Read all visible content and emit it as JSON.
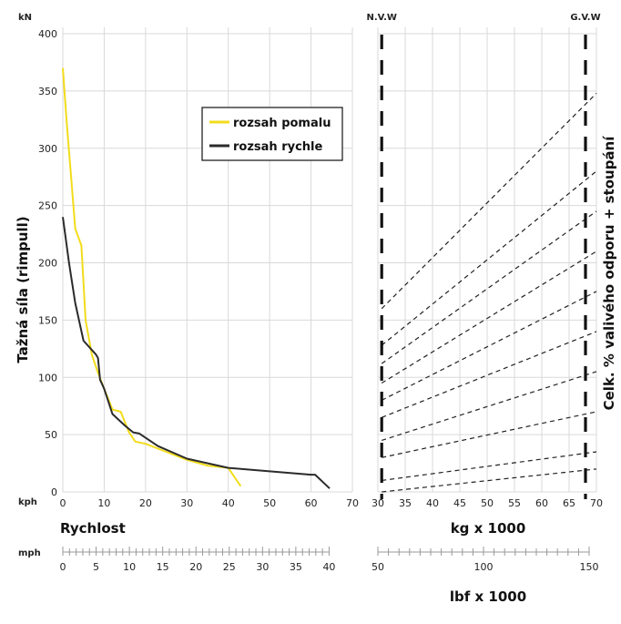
{
  "colors": {
    "slow": "#f2dc1c",
    "fast": "#2b2b2b",
    "grid": "#d9d9d9",
    "text": "#222222"
  },
  "chart_data": [
    {
      "type": "line",
      "title": "",
      "ylabel": "Tažná síla (rimpull)",
      "y_unit": "kN",
      "ylim": [
        0,
        400
      ],
      "y_ticks": [
        0,
        50,
        100,
        150,
        200,
        250,
        300,
        350,
        400
      ],
      "xlabel": "Rychlost",
      "x_unit": "kph",
      "xlim": [
        0,
        70
      ],
      "x_ticks": [
        0,
        10,
        20,
        30,
        40,
        50,
        60,
        70
      ],
      "x2_unit": "mph",
      "x2_ticks": [
        0,
        5,
        10,
        15,
        20,
        25,
        30,
        35,
        40
      ],
      "grid": true,
      "legend": "top-right",
      "series": [
        {
          "name": "rozsah pomalu",
          "color": "#f2dc1c",
          "points": [
            [
              0,
              370
            ],
            [
              1,
              320
            ],
            [
              2,
              275
            ],
            [
              3,
              230
            ],
            [
              4.5,
              215
            ],
            [
              5.5,
              150
            ],
            [
              7,
              120
            ],
            [
              8.5,
              104
            ],
            [
              10,
              90
            ],
            [
              12,
              72
            ],
            [
              14,
              70
            ],
            [
              16,
              52
            ],
            [
              17.5,
              44
            ],
            [
              20,
              42
            ],
            [
              25,
              35
            ],
            [
              30,
              28
            ],
            [
              35,
              23
            ],
            [
              40,
              21
            ],
            [
              43,
              5
            ]
          ]
        },
        {
          "name": "rozsah rychle",
          "color": "#2b2b2b",
          "points": [
            [
              0,
              240
            ],
            [
              1.5,
              200
            ],
            [
              3,
              165
            ],
            [
              5,
              132
            ],
            [
              8,
              120
            ],
            [
              8.5,
              117
            ],
            [
              9,
              98
            ],
            [
              10,
              90
            ],
            [
              12,
              68
            ],
            [
              15,
              58
            ],
            [
              17,
              52
            ],
            [
              18.5,
              51
            ],
            [
              23,
              40
            ],
            [
              30,
              29
            ],
            [
              40,
              21
            ],
            [
              50,
              18
            ],
            [
              60,
              15
            ],
            [
              61,
              15
            ],
            [
              64.5,
              3
            ]
          ]
        }
      ]
    },
    {
      "type": "line",
      "title": "",
      "xlabel": "kg x 1000",
      "xlim": [
        30,
        70
      ],
      "x_ticks": [
        30,
        35,
        40,
        45,
        50,
        55,
        60,
        65,
        70
      ],
      "x2label": "lbf x 1000",
      "x2_ticks": [
        50,
        100,
        150
      ],
      "ylabel": "Celk. % valivého odporu + stoupání",
      "grid": true,
      "markers": [
        {
          "label": "N.V.W",
          "x": 30.7
        },
        {
          "label": "G.V.W",
          "x": 68
        }
      ],
      "series": [
        {
          "values": [
            [
              30.7,
              0
            ],
            [
              70,
              20
            ]
          ]
        },
        {
          "values": [
            [
              30.7,
              10
            ],
            [
              70,
              35
            ]
          ]
        },
        {
          "values": [
            [
              30.7,
              30
            ],
            [
              70,
              70
            ]
          ]
        },
        {
          "values": [
            [
              30.7,
              45
            ],
            [
              70,
              105
            ]
          ]
        },
        {
          "values": [
            [
              30.7,
              65
            ],
            [
              70,
              140
            ]
          ]
        },
        {
          "values": [
            [
              30.7,
              80
            ],
            [
              70,
              175
            ]
          ]
        },
        {
          "values": [
            [
              30.7,
              95
            ],
            [
              70,
              210
            ]
          ]
        },
        {
          "values": [
            [
              30.7,
              112
            ],
            [
              70,
              245
            ]
          ]
        },
        {
          "values": [
            [
              30.7,
              128
            ],
            [
              70,
              280
            ]
          ]
        },
        {
          "values": [
            [
              30.7,
              160
            ],
            [
              70,
              348
            ]
          ]
        }
      ]
    }
  ]
}
